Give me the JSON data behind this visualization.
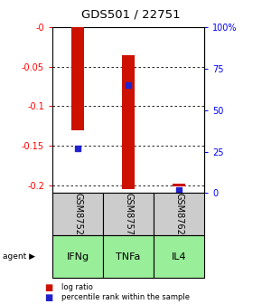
{
  "title": "GDS501 / 22751",
  "samples": [
    "GSM8752",
    "GSM8757",
    "GSM8762"
  ],
  "agents": [
    "IFNg",
    "TNFa",
    "IL4"
  ],
  "log_ratio_bottoms": [
    -0.13,
    -0.205,
    -0.202
  ],
  "log_ratio_tops": [
    0.0,
    -0.035,
    -0.198
  ],
  "percentile_ranks": [
    0.27,
    0.65,
    0.02
  ],
  "ylim_left": [
    -0.21,
    0.0
  ],
  "ylim_right": [
    0.0,
    1.0
  ],
  "yticks_left": [
    0.0,
    -0.05,
    -0.1,
    -0.15,
    -0.2
  ],
  "yticks_right": [
    0.0,
    0.25,
    0.5,
    0.75,
    1.0
  ],
  "ytick_labels_left": [
    "-0",
    "-0.05",
    "-0.1",
    "-0.15",
    "-0.2"
  ],
  "ytick_labels_right": [
    "0",
    "25",
    "50",
    "75",
    "100%"
  ],
  "bar_color": "#cc1100",
  "percentile_color": "#2222cc",
  "bg_color": "#ffffff",
  "sample_box_color": "#cccccc",
  "agent_box_color": "#99ee99"
}
